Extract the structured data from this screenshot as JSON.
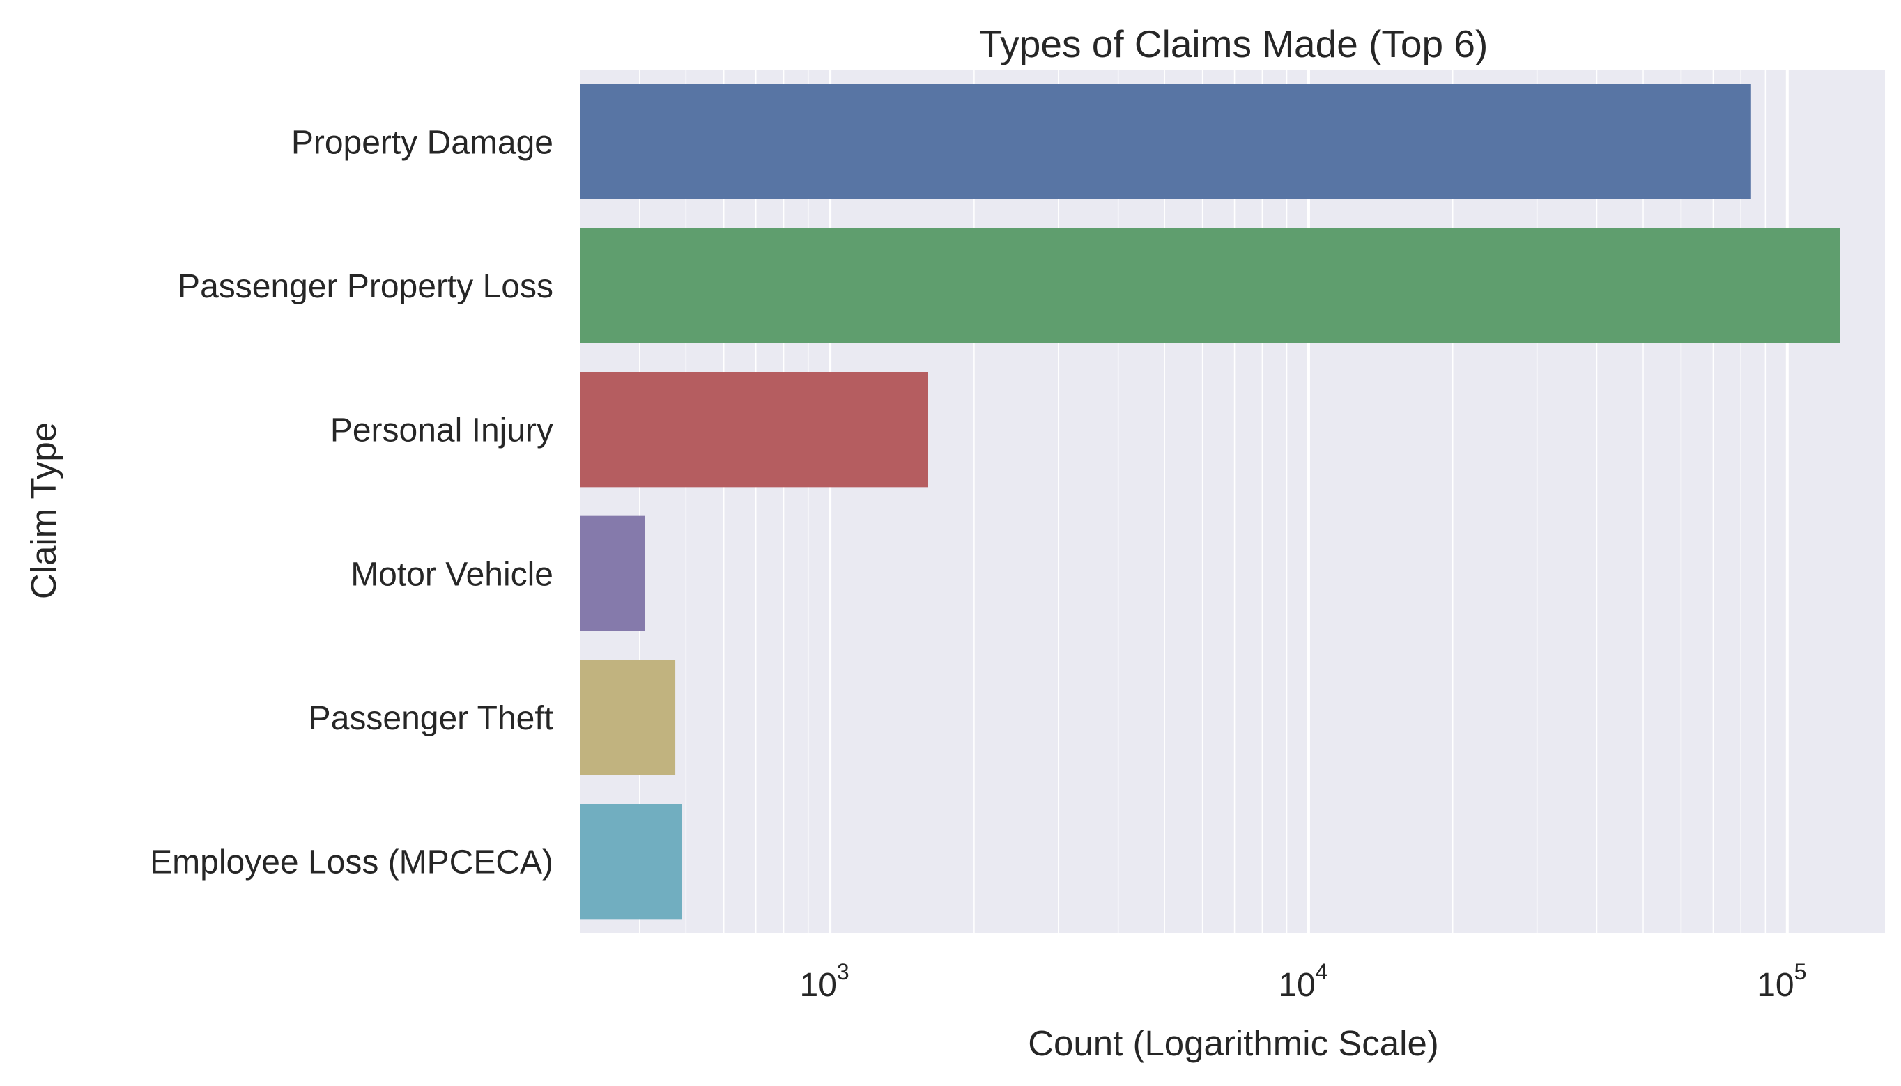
{
  "chart_data": {
    "type": "bar",
    "orientation": "horizontal",
    "title": "Types of Claims Made (Top 6)",
    "xlabel": "Count (Logarithmic Scale)",
    "ylabel": "Claim Type",
    "xscale": "log",
    "xlim": [
      300,
      160000
    ],
    "grid": true,
    "categories": [
      "Property Damage",
      "Passenger Property Loss",
      "Personal Injury",
      "Motor Vehicle",
      "Passenger Theft",
      "Employee Loss (MPCECA)"
    ],
    "values": [
      84000,
      129000,
      1600,
      410,
      475,
      490
    ],
    "colors": [
      "#5875a4",
      "#5f9e6e",
      "#b55d60",
      "#857aab",
      "#c1b37f",
      "#71aec0"
    ],
    "xticks": [
      {
        "value": 1000,
        "base": "10",
        "exp": "3"
      },
      {
        "value": 10000,
        "base": "10",
        "exp": "4"
      },
      {
        "value": 100000,
        "base": "10",
        "exp": "5"
      }
    ]
  },
  "style": {
    "plot_background": "#eaeaf2",
    "grid_color": "#ffffff",
    "text_color": "#262626"
  }
}
